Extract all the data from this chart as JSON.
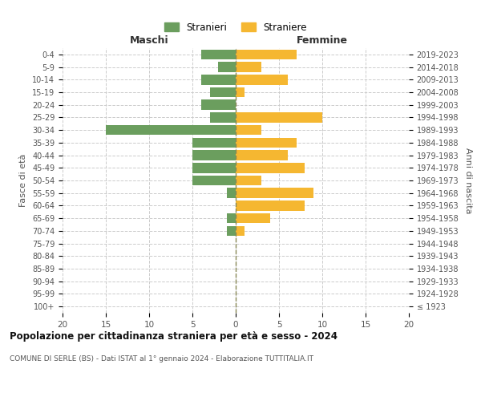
{
  "age_groups": [
    "100+",
    "95-99",
    "90-94",
    "85-89",
    "80-84",
    "75-79",
    "70-74",
    "65-69",
    "60-64",
    "55-59",
    "50-54",
    "45-49",
    "40-44",
    "35-39",
    "30-34",
    "25-29",
    "20-24",
    "15-19",
    "10-14",
    "5-9",
    "0-4"
  ],
  "birth_years": [
    "≤ 1923",
    "1924-1928",
    "1929-1933",
    "1934-1938",
    "1939-1943",
    "1944-1948",
    "1949-1953",
    "1954-1958",
    "1959-1963",
    "1964-1968",
    "1969-1973",
    "1974-1978",
    "1979-1983",
    "1984-1988",
    "1989-1993",
    "1994-1998",
    "1999-2003",
    "2004-2008",
    "2009-2013",
    "2014-2018",
    "2019-2023"
  ],
  "males": [
    0,
    0,
    0,
    0,
    0,
    0,
    1,
    1,
    0,
    1,
    5,
    5,
    5,
    5,
    15,
    3,
    4,
    3,
    4,
    2,
    4
  ],
  "females": [
    0,
    0,
    0,
    0,
    0,
    0,
    1,
    4,
    8,
    9,
    3,
    8,
    6,
    7,
    3,
    10,
    0,
    1,
    6,
    3,
    7
  ],
  "male_color": "#6b9e5e",
  "female_color": "#f5b731",
  "background_color": "#ffffff",
  "grid_color": "#cccccc",
  "title": "Popolazione per cittadinanza straniera per età e sesso - 2024",
  "subtitle": "COMUNE DI SERLE (BS) - Dati ISTAT al 1° gennaio 2024 - Elaborazione TUTTITALIA.IT",
  "xlabel_left": "Maschi",
  "xlabel_right": "Femmine",
  "ylabel_left": "Fasce di età",
  "ylabel_right": "Anni di nascita",
  "legend_male": "Stranieri",
  "legend_female": "Straniere",
  "xlim": 20,
  "bar_height": 0.8
}
